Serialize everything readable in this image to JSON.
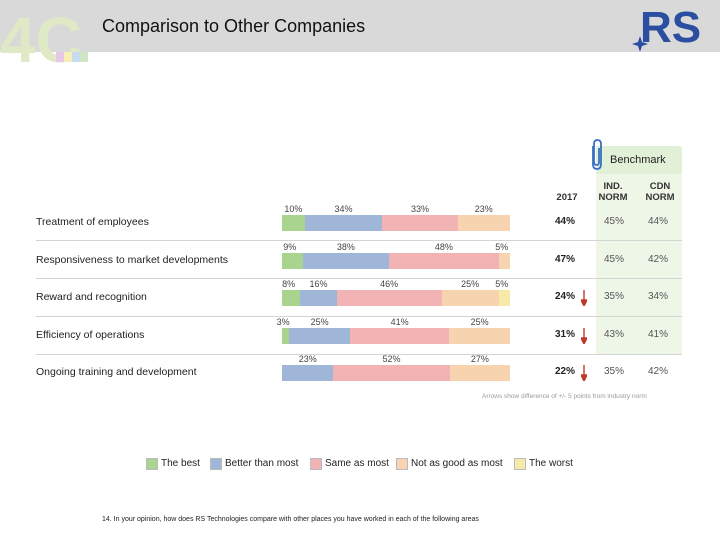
{
  "header": {
    "title": "Comparison to Other Companies"
  },
  "logos": {
    "left_logo_text": "4C",
    "right_logo_text": "RS"
  },
  "benchmark": {
    "title": "Benchmark",
    "year_label": "2017",
    "ind_norm_label": "IND. NORM",
    "cdn_norm_label": "CDN NORM"
  },
  "chart_data": {
    "type": "bar",
    "orientation": "horizontal",
    "stacked": true,
    "percent_scale": [
      0,
      100
    ],
    "categories": [
      "Treatment of employees",
      "Responsiveness to market developments",
      "Reward and recognition",
      "Efficiency of operations",
      "Ongoing training and development"
    ],
    "series": [
      {
        "name": "The best",
        "color": "#a9d48f",
        "values": [
          10,
          9,
          8,
          3,
          0
        ]
      },
      {
        "name": "Better than most",
        "color": "#9fb6d9",
        "values": [
          34,
          38,
          16,
          25,
          23
        ]
      },
      {
        "name": "Same as most",
        "color": "#f1b3b3",
        "values": [
          33,
          48,
          46,
          41,
          52
        ]
      },
      {
        "name": "Not as good as most",
        "color": "#f8d3b0",
        "values": [
          23,
          5,
          25,
          25,
          27
        ]
      },
      {
        "name": "The worst",
        "color": "#f6eaa6",
        "values": [
          0,
          0,
          5,
          0,
          0
        ]
      }
    ],
    "segment_labels": [
      [
        "10%",
        "34%",
        "33%",
        "23%"
      ],
      [
        "9%",
        "38%",
        "48%",
        "5%"
      ],
      [
        "8%",
        "16%",
        "46%",
        "25%",
        "5%"
      ],
      [
        "3%",
        "25%",
        "41%",
        "25%"
      ],
      [
        "23%",
        "52%",
        "27%"
      ]
    ],
    "benchmark_2017": [
      "44%",
      "47%",
      "24%",
      "31%",
      "22%"
    ],
    "ind_norm": [
      "45%",
      "45%",
      "35%",
      "43%",
      "35%"
    ],
    "cdn_norm": [
      "44%",
      "42%",
      "34%",
      "41%",
      "42%"
    ],
    "below_norm": [
      false,
      false,
      true,
      true,
      true
    ],
    "legend_position": "bottom",
    "footnote": "Arrows show difference of +/- 5 points from industry norm"
  },
  "colors": {
    "header_bg": "#d9d9d9",
    "benchmark_bg": "#eef6e8",
    "arrow": "#c0392b",
    "rs_blue": "#2b4ea0"
  },
  "question": "14. In your opinion, how does RS Technologies compare with other places you have worked in each of the following areas"
}
